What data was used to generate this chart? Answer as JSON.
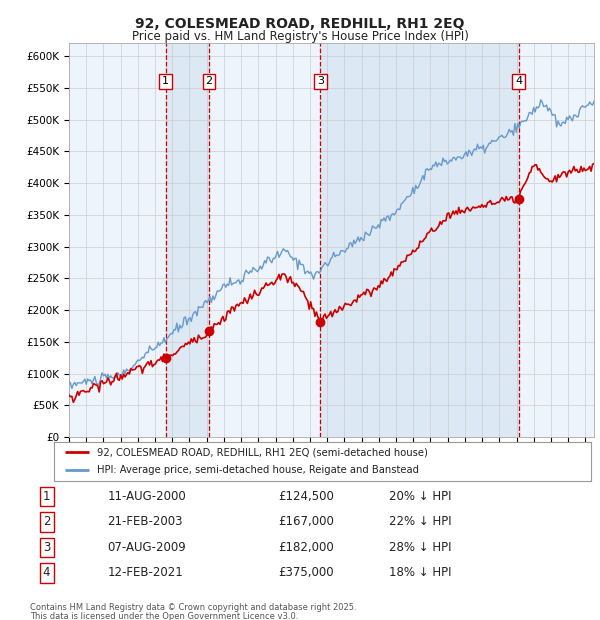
{
  "title": "92, COLESMEAD ROAD, REDHILL, RH1 2EQ",
  "subtitle": "Price paid vs. HM Land Registry's House Price Index (HPI)",
  "ylabel_ticks": [
    "£0",
    "£50K",
    "£100K",
    "£150K",
    "£200K",
    "£250K",
    "£300K",
    "£350K",
    "£400K",
    "£450K",
    "£500K",
    "£550K",
    "£600K"
  ],
  "ytick_values": [
    0,
    50000,
    100000,
    150000,
    200000,
    250000,
    300000,
    350000,
    400000,
    450000,
    500000,
    550000,
    600000
  ],
  "xlim_start": 1995.0,
  "xlim_end": 2025.5,
  "ylim_min": 0,
  "ylim_max": 620000,
  "sales": [
    {
      "num": 1,
      "date_label": "11-AUG-2000",
      "x": 2000.61,
      "price": 124500,
      "pct": "20%"
    },
    {
      "num": 2,
      "date_label": "21-FEB-2003",
      "x": 2003.13,
      "price": 167000,
      "pct": "22%"
    },
    {
      "num": 3,
      "date_label": "07-AUG-2009",
      "x": 2009.6,
      "price": 182000,
      "pct": "28%"
    },
    {
      "num": 4,
      "date_label": "12-FEB-2021",
      "x": 2021.12,
      "price": 375000,
      "pct": "18%"
    }
  ],
  "vline_color": "#cc0000",
  "vline_shade_color": "#dce9f5",
  "hpi_color": "#6699cc",
  "price_color": "#cc0000",
  "legend_label_price": "92, COLESMEAD ROAD, REDHILL, RH1 2EQ (semi-detached house)",
  "legend_label_hpi": "HPI: Average price, semi-detached house, Reigate and Banstead",
  "footer1": "Contains HM Land Registry data © Crown copyright and database right 2025.",
  "footer2": "This data is licensed under the Open Government Licence v3.0.",
  "background_color": "#ffffff",
  "grid_color": "#cccccc",
  "plot_bg_color": "#eef4fb"
}
